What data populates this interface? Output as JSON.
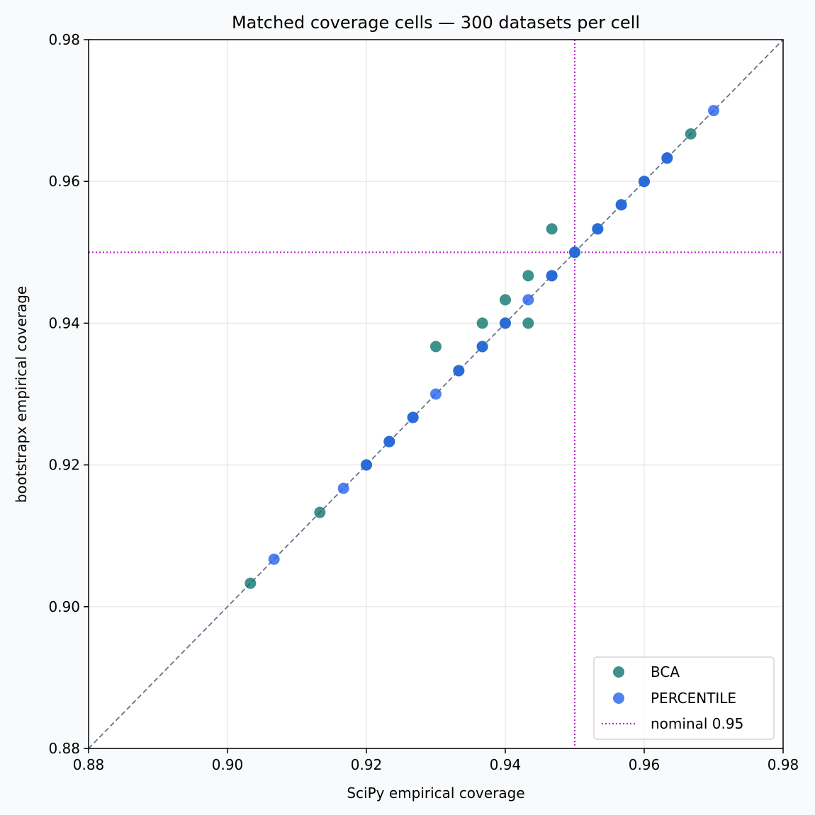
{
  "chart_data": {
    "type": "scatter",
    "title": "Matched coverage cells — 300 datasets per cell",
    "xlabel": "SciPy empirical coverage",
    "ylabel": "bootstrapx empirical coverage",
    "xlim": [
      0.88,
      0.98
    ],
    "ylim": [
      0.88,
      0.98
    ],
    "xticks": [
      "0.88",
      "0.90",
      "0.92",
      "0.94",
      "0.96",
      "0.98"
    ],
    "yticks": [
      "0.88",
      "0.90",
      "0.92",
      "0.94",
      "0.96",
      "0.98"
    ],
    "grid": true,
    "legend_position": "lower-right",
    "reference_line": {
      "type": "identity",
      "color": "#64748b",
      "style": "dashed"
    },
    "nominal": {
      "label": "nominal 0.95",
      "value": 0.95,
      "color": "#c026d3",
      "style": "dotted"
    },
    "series": [
      {
        "name": "BCA",
        "color": "#0f766e",
        "points": [
          [
            0.9033,
            0.9033
          ],
          [
            0.9133,
            0.9133
          ],
          [
            0.92,
            0.92
          ],
          [
            0.9233,
            0.9233
          ],
          [
            0.9267,
            0.9267
          ],
          [
            0.93,
            0.9367
          ],
          [
            0.9333,
            0.9333
          ],
          [
            0.9367,
            0.94
          ],
          [
            0.9367,
            0.9367
          ],
          [
            0.94,
            0.9433
          ],
          [
            0.94,
            0.94
          ],
          [
            0.9433,
            0.9467
          ],
          [
            0.9433,
            0.94
          ],
          [
            0.9467,
            0.9533
          ],
          [
            0.9467,
            0.9467
          ],
          [
            0.95,
            0.95
          ],
          [
            0.9533,
            0.9533
          ],
          [
            0.9567,
            0.9567
          ],
          [
            0.96,
            0.96
          ],
          [
            0.9633,
            0.9633
          ],
          [
            0.9667,
            0.9667
          ]
        ]
      },
      {
        "name": "PERCENTILE",
        "color": "#2563eb",
        "points": [
          [
            0.9067,
            0.9067
          ],
          [
            0.9167,
            0.9167
          ],
          [
            0.92,
            0.92
          ],
          [
            0.9233,
            0.9233
          ],
          [
            0.9267,
            0.9267
          ],
          [
            0.93,
            0.93
          ],
          [
            0.9333,
            0.9333
          ],
          [
            0.9367,
            0.9367
          ],
          [
            0.94,
            0.94
          ],
          [
            0.9433,
            0.9433
          ],
          [
            0.9467,
            0.9467
          ],
          [
            0.95,
            0.95
          ],
          [
            0.9533,
            0.9533
          ],
          [
            0.9567,
            0.9567
          ],
          [
            0.96,
            0.96
          ],
          [
            0.9633,
            0.9633
          ],
          [
            0.97,
            0.97
          ]
        ]
      }
    ]
  }
}
